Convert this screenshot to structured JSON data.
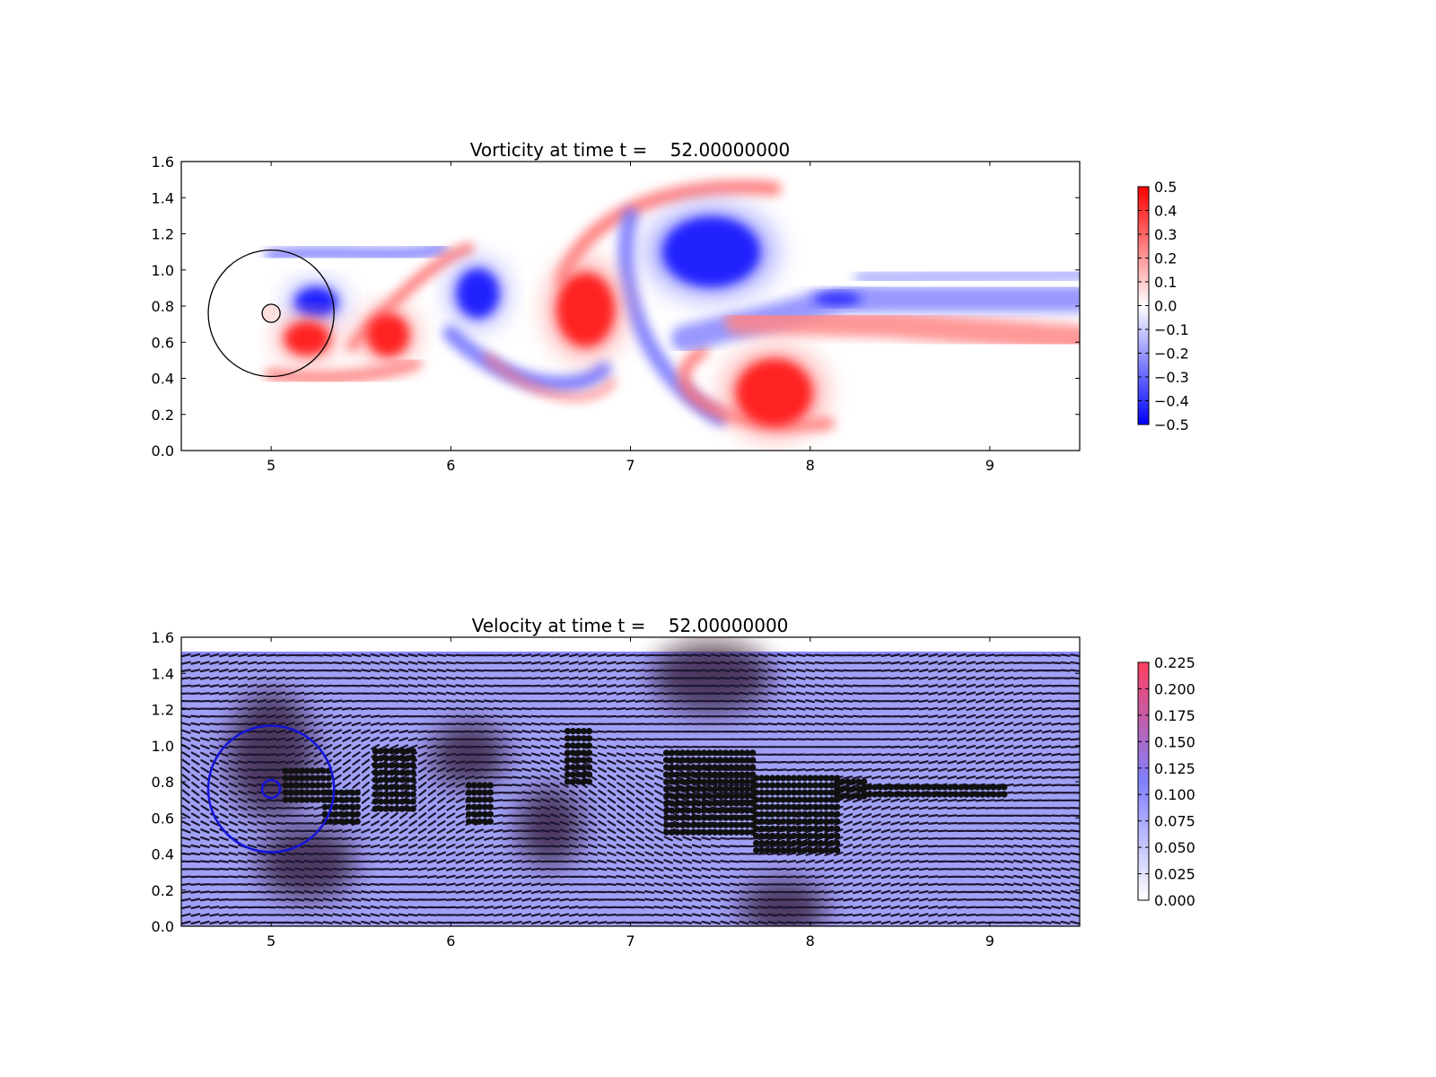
{
  "chart_data": [
    {
      "type": "heatmap",
      "title": "Vorticity at time t =    52.00000000",
      "xlim": [
        4.5,
        9.5
      ],
      "ylim": [
        0.0,
        1.6
      ],
      "x_ticks": [
        "5",
        "6",
        "7",
        "8",
        "9"
      ],
      "y_ticks": [
        "0.0",
        "0.2",
        "0.4",
        "0.6",
        "0.8",
        "1.0",
        "1.2",
        "1.4",
        "1.6"
      ],
      "colorbar": {
        "range": [
          -0.5,
          0.5
        ],
        "colormap": [
          "#0000ff",
          "#ffffff",
          "#ff0000"
        ],
        "ticks": [
          "−0.5",
          "−0.4",
          "−0.3",
          "−0.2",
          "−0.1",
          "0.0",
          "0.1",
          "0.2",
          "0.3",
          "0.4",
          "0.5"
        ]
      },
      "cylinder": {
        "center": [
          5.0,
          0.76
        ],
        "radius": 0.05
      },
      "control_circle": {
        "center": [
          5.0,
          0.76
        ],
        "radius": 0.35
      },
      "vortices": [
        {
          "x": 5.25,
          "y": 0.82,
          "sign": -1
        },
        {
          "x": 5.2,
          "y": 0.62,
          "sign": 1
        },
        {
          "x": 5.65,
          "y": 0.64,
          "sign": 1
        },
        {
          "x": 6.15,
          "y": 0.87,
          "sign": -1
        },
        {
          "x": 6.75,
          "y": 0.78,
          "sign": 1
        },
        {
          "x": 7.45,
          "y": 1.1,
          "sign": -1
        },
        {
          "x": 7.8,
          "y": 0.32,
          "sign": 1
        },
        {
          "x": 8.15,
          "y": 0.84,
          "sign": -1
        }
      ]
    },
    {
      "type": "quiver",
      "title": "Velocity at time t =    52.00000000",
      "xlim": [
        4.5,
        9.5
      ],
      "ylim": [
        0.0,
        1.6
      ],
      "x_ticks": [
        "5",
        "6",
        "7",
        "8",
        "9"
      ],
      "y_ticks": [
        "0.0",
        "0.2",
        "0.4",
        "0.6",
        "0.8",
        "1.0",
        "1.2",
        "1.4",
        "1.6"
      ],
      "colorbar": {
        "range": [
          0.0,
          0.225
        ],
        "colormap": [
          "#ffffff",
          "#7f7fff",
          "#ff3f5f"
        ],
        "ticks": [
          "0.000",
          "0.025",
          "0.050",
          "0.075",
          "0.100",
          "0.125",
          "0.150",
          "0.175",
          "0.200",
          "0.225"
        ]
      },
      "flow_top": 1.52,
      "cylinder": {
        "center": [
          5.0,
          0.76
        ],
        "radius": 0.05
      },
      "control_circle": {
        "center": [
          5.0,
          0.76
        ],
        "radius": 0.35
      }
    }
  ]
}
